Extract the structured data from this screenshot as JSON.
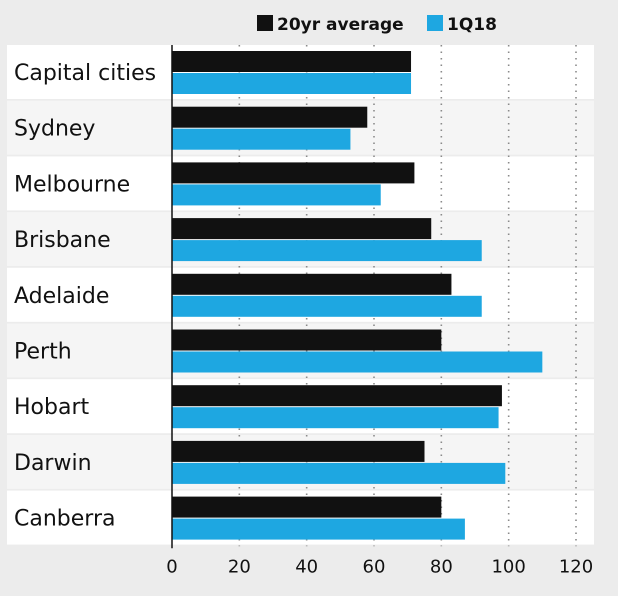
{
  "chart_data": {
    "type": "bar",
    "orientation": "horizontal",
    "categories": [
      "Capital cities",
      "Sydney",
      "Melbourne",
      "Brisbane",
      "Adelaide",
      "Perth",
      "Hobart",
      "Darwin",
      "Canberra"
    ],
    "series": [
      {
        "name": "20yr average",
        "color": "#111111",
        "values": [
          71,
          58,
          72,
          77,
          83,
          80,
          98,
          75,
          80
        ]
      },
      {
        "name": "1Q18",
        "color": "#1ea7e1",
        "values": [
          71,
          53,
          62,
          92,
          92,
          110,
          97,
          99,
          87
        ]
      }
    ],
    "xlim": [
      0,
      120
    ],
    "xticks": [
      0,
      20,
      40,
      60,
      80,
      100,
      120
    ],
    "grid": "vertical-dotted",
    "legend": "top"
  }
}
